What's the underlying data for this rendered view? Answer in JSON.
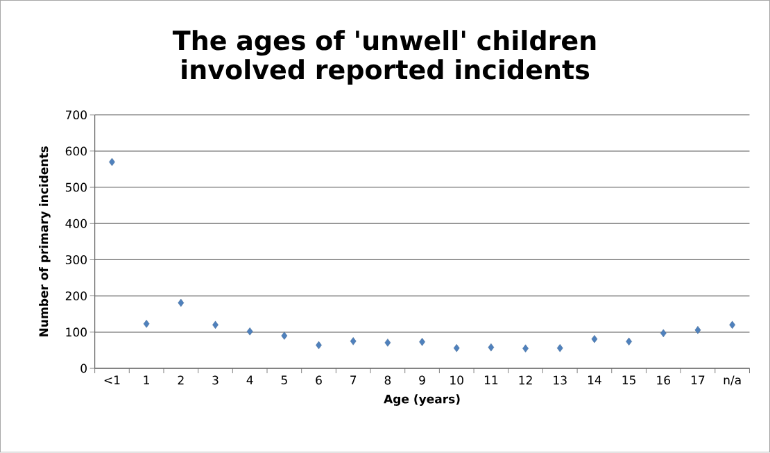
{
  "chart_data": {
    "type": "scatter",
    "title": "The ages of 'unwell' children involved reported incidents",
    "xlabel": "Age (years)",
    "ylabel": "Number of primary incidents",
    "categories": [
      "<1",
      "1",
      "2",
      "3",
      "4",
      "5",
      "6",
      "7",
      "8",
      "9",
      "10",
      "11",
      "12",
      "13",
      "14",
      "15",
      "16",
      "17",
      "n/a"
    ],
    "values": [
      570,
      123,
      181,
      120,
      102,
      90,
      64,
      75,
      71,
      73,
      56,
      58,
      55,
      56,
      81,
      74,
      97,
      106,
      120
    ],
    "color": "#4f81bd",
    "marker": "diamond",
    "ylim": [
      0,
      700
    ],
    "yticks": [
      0,
      100,
      200,
      300,
      400,
      500,
      600,
      700
    ],
    "grid": "y"
  }
}
